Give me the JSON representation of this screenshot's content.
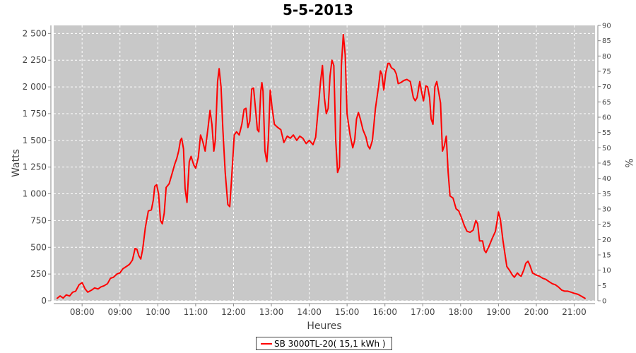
{
  "chart_data": {
    "type": "line",
    "title": "5-5-2013",
    "xlabel": "Heures",
    "ylabel": "Watts",
    "y2label": "%",
    "xlim": [
      7.25,
      21.55
    ],
    "ylim": [
      0,
      2575
    ],
    "y2lim": [
      0,
      90
    ],
    "x_ticks": [
      8,
      9,
      10,
      11,
      12,
      13,
      14,
      15,
      16,
      17,
      18,
      19,
      20,
      21
    ],
    "x_tick_labels": [
      "08:00",
      "09:00",
      "10:00",
      "11:00",
      "12:00",
      "13:00",
      "14:00",
      "15:00",
      "16:00",
      "17:00",
      "18:00",
      "19:00",
      "20:00",
      "21:00"
    ],
    "y_ticks": [
      0,
      250,
      500,
      750,
      1000,
      1250,
      1500,
      1750,
      2000,
      2250,
      2500
    ],
    "y_tick_labels": [
      "0",
      "250",
      "500",
      "750",
      "1 000",
      "1 250",
      "1 500",
      "1 750",
      "2 000",
      "2 250",
      "2 500"
    ],
    "y2_ticks": [
      0,
      5,
      10,
      15,
      20,
      25,
      30,
      35,
      40,
      45,
      50,
      55,
      60,
      65,
      70,
      75,
      80,
      85,
      90
    ],
    "y2_tick_labels": [
      "0",
      "5",
      "10",
      "15",
      "20",
      "25",
      "30",
      "35",
      "40",
      "45",
      "50",
      "55",
      "60",
      "65",
      "70",
      "75",
      "80",
      "85",
      "90"
    ],
    "grid": true,
    "legend_position": "bottom-center",
    "colors": {
      "plot_bg": "#c8c8c8",
      "grid": "#ffffff",
      "series": "#ff0000"
    },
    "series": [
      {
        "name": "SB 3000TL-20( 15,1 kWh )",
        "points": [
          [
            7.33,
            20
          ],
          [
            7.42,
            45
          ],
          [
            7.5,
            25
          ],
          [
            7.58,
            55
          ],
          [
            7.67,
            45
          ],
          [
            7.75,
            80
          ],
          [
            7.83,
            90
          ],
          [
            7.92,
            150
          ],
          [
            8.0,
            170
          ],
          [
            8.08,
            110
          ],
          [
            8.15,
            80
          ],
          [
            8.25,
            100
          ],
          [
            8.33,
            120
          ],
          [
            8.42,
            110
          ],
          [
            8.5,
            130
          ],
          [
            8.58,
            140
          ],
          [
            8.67,
            160
          ],
          [
            8.75,
            210
          ],
          [
            8.83,
            220
          ],
          [
            8.92,
            250
          ],
          [
            9.0,
            260
          ],
          [
            9.08,
            300
          ],
          [
            9.17,
            320
          ],
          [
            9.25,
            340
          ],
          [
            9.33,
            380
          ],
          [
            9.4,
            490
          ],
          [
            9.45,
            480
          ],
          [
            9.5,
            420
          ],
          [
            9.55,
            390
          ],
          [
            9.6,
            480
          ],
          [
            9.67,
            680
          ],
          [
            9.75,
            840
          ],
          [
            9.83,
            850
          ],
          [
            9.88,
            940
          ],
          [
            9.92,
            1070
          ],
          [
            9.97,
            1085
          ],
          [
            10.02,
            1000
          ],
          [
            10.07,
            750
          ],
          [
            10.12,
            720
          ],
          [
            10.17,
            820
          ],
          [
            10.22,
            1060
          ],
          [
            10.3,
            1095
          ],
          [
            10.37,
            1180
          ],
          [
            10.45,
            1280
          ],
          [
            10.5,
            1330
          ],
          [
            10.55,
            1400
          ],
          [
            10.6,
            1500
          ],
          [
            10.63,
            1520
          ],
          [
            10.68,
            1420
          ],
          [
            10.72,
            1050
          ],
          [
            10.77,
            920
          ],
          [
            10.83,
            1300
          ],
          [
            10.88,
            1350
          ],
          [
            10.95,
            1270
          ],
          [
            11.0,
            1240
          ],
          [
            11.07,
            1340
          ],
          [
            11.13,
            1550
          ],
          [
            11.18,
            1500
          ],
          [
            11.25,
            1400
          ],
          [
            11.33,
            1630
          ],
          [
            11.38,
            1780
          ],
          [
            11.43,
            1650
          ],
          [
            11.48,
            1400
          ],
          [
            11.52,
            1500
          ],
          [
            11.58,
            2050
          ],
          [
            11.62,
            2170
          ],
          [
            11.67,
            2000
          ],
          [
            11.72,
            1600
          ],
          [
            11.78,
            1200
          ],
          [
            11.85,
            900
          ],
          [
            11.9,
            880
          ],
          [
            11.95,
            1150
          ],
          [
            12.02,
            1550
          ],
          [
            12.08,
            1580
          ],
          [
            12.15,
            1550
          ],
          [
            12.22,
            1650
          ],
          [
            12.28,
            1790
          ],
          [
            12.33,
            1800
          ],
          [
            12.38,
            1620
          ],
          [
            12.43,
            1680
          ],
          [
            12.48,
            1980
          ],
          [
            12.53,
            1990
          ],
          [
            12.58,
            1800
          ],
          [
            12.63,
            1600
          ],
          [
            12.67,
            1580
          ],
          [
            12.72,
            1960
          ],
          [
            12.75,
            2040
          ],
          [
            12.78,
            1960
          ],
          [
            12.83,
            1400
          ],
          [
            12.88,
            1300
          ],
          [
            12.92,
            1500
          ],
          [
            12.97,
            1970
          ],
          [
            13.02,
            1800
          ],
          [
            13.08,
            1650
          ],
          [
            13.17,
            1620
          ],
          [
            13.25,
            1600
          ],
          [
            13.33,
            1480
          ],
          [
            13.42,
            1540
          ],
          [
            13.5,
            1520
          ],
          [
            13.58,
            1550
          ],
          [
            13.67,
            1500
          ],
          [
            13.75,
            1540
          ],
          [
            13.83,
            1520
          ],
          [
            13.92,
            1470
          ],
          [
            14.0,
            1500
          ],
          [
            14.05,
            1480
          ],
          [
            14.1,
            1460
          ],
          [
            14.17,
            1530
          ],
          [
            14.25,
            1850
          ],
          [
            14.3,
            2050
          ],
          [
            14.35,
            2200
          ],
          [
            14.4,
            1900
          ],
          [
            14.45,
            1750
          ],
          [
            14.5,
            1800
          ],
          [
            14.55,
            2100
          ],
          [
            14.6,
            2250
          ],
          [
            14.65,
            2200
          ],
          [
            14.7,
            1500
          ],
          [
            14.75,
            1200
          ],
          [
            14.8,
            1250
          ],
          [
            14.85,
            2200
          ],
          [
            14.9,
            2490
          ],
          [
            14.95,
            2300
          ],
          [
            15.0,
            1750
          ],
          [
            15.08,
            1550
          ],
          [
            15.15,
            1430
          ],
          [
            15.2,
            1500
          ],
          [
            15.25,
            1700
          ],
          [
            15.3,
            1760
          ],
          [
            15.35,
            1700
          ],
          [
            15.42,
            1600
          ],
          [
            15.5,
            1530
          ],
          [
            15.55,
            1450
          ],
          [
            15.6,
            1420
          ],
          [
            15.67,
            1500
          ],
          [
            15.75,
            1800
          ],
          [
            15.83,
            2000
          ],
          [
            15.88,
            2150
          ],
          [
            15.92,
            2120
          ],
          [
            15.97,
            1970
          ],
          [
            16.02,
            2130
          ],
          [
            16.08,
            2220
          ],
          [
            16.12,
            2220
          ],
          [
            16.17,
            2180
          ],
          [
            16.25,
            2160
          ],
          [
            16.3,
            2120
          ],
          [
            16.35,
            2030
          ],
          [
            16.42,
            2040
          ],
          [
            16.5,
            2060
          ],
          [
            16.58,
            2070
          ],
          [
            16.67,
            2050
          ],
          [
            16.75,
            1900
          ],
          [
            16.8,
            1870
          ],
          [
            16.85,
            1900
          ],
          [
            16.92,
            2050
          ],
          [
            16.97,
            1950
          ],
          [
            17.02,
            1870
          ],
          [
            17.08,
            2010
          ],
          [
            17.13,
            2000
          ],
          [
            17.18,
            1900
          ],
          [
            17.22,
            1700
          ],
          [
            17.27,
            1650
          ],
          [
            17.32,
            2000
          ],
          [
            17.37,
            2050
          ],
          [
            17.42,
            1950
          ],
          [
            17.47,
            1850
          ],
          [
            17.52,
            1400
          ],
          [
            17.57,
            1450
          ],
          [
            17.62,
            1540
          ],
          [
            17.67,
            1200
          ],
          [
            17.72,
            980
          ],
          [
            17.8,
            960
          ],
          [
            17.88,
            860
          ],
          [
            17.95,
            840
          ],
          [
            18.02,
            780
          ],
          [
            18.1,
            700
          ],
          [
            18.17,
            650
          ],
          [
            18.25,
            640
          ],
          [
            18.33,
            660
          ],
          [
            18.4,
            750
          ],
          [
            18.45,
            720
          ],
          [
            18.5,
            560
          ],
          [
            18.58,
            560
          ],
          [
            18.63,
            470
          ],
          [
            18.67,
            450
          ],
          [
            18.75,
            510
          ],
          [
            18.83,
            580
          ],
          [
            18.92,
            650
          ],
          [
            18.97,
            760
          ],
          [
            19.0,
            830
          ],
          [
            19.05,
            760
          ],
          [
            19.12,
            560
          ],
          [
            19.17,
            440
          ],
          [
            19.22,
            320
          ],
          [
            19.3,
            280
          ],
          [
            19.37,
            240
          ],
          [
            19.42,
            220
          ],
          [
            19.5,
            260
          ],
          [
            19.55,
            240
          ],
          [
            19.6,
            230
          ],
          [
            19.67,
            290
          ],
          [
            19.72,
            350
          ],
          [
            19.78,
            370
          ],
          [
            19.83,
            330
          ],
          [
            19.9,
            260
          ],
          [
            20.0,
            240
          ],
          [
            20.08,
            230
          ],
          [
            20.17,
            210
          ],
          [
            20.25,
            200
          ],
          [
            20.33,
            180
          ],
          [
            20.42,
            160
          ],
          [
            20.5,
            150
          ],
          [
            20.58,
            130
          ],
          [
            20.67,
            100
          ],
          [
            20.75,
            90
          ],
          [
            20.83,
            90
          ],
          [
            20.92,
            80
          ],
          [
            21.0,
            70
          ],
          [
            21.1,
            60
          ],
          [
            21.2,
            40
          ],
          [
            21.3,
            20
          ]
        ]
      }
    ]
  },
  "legend": {
    "label": "SB 3000TL-20( 15,1 kWh )"
  }
}
